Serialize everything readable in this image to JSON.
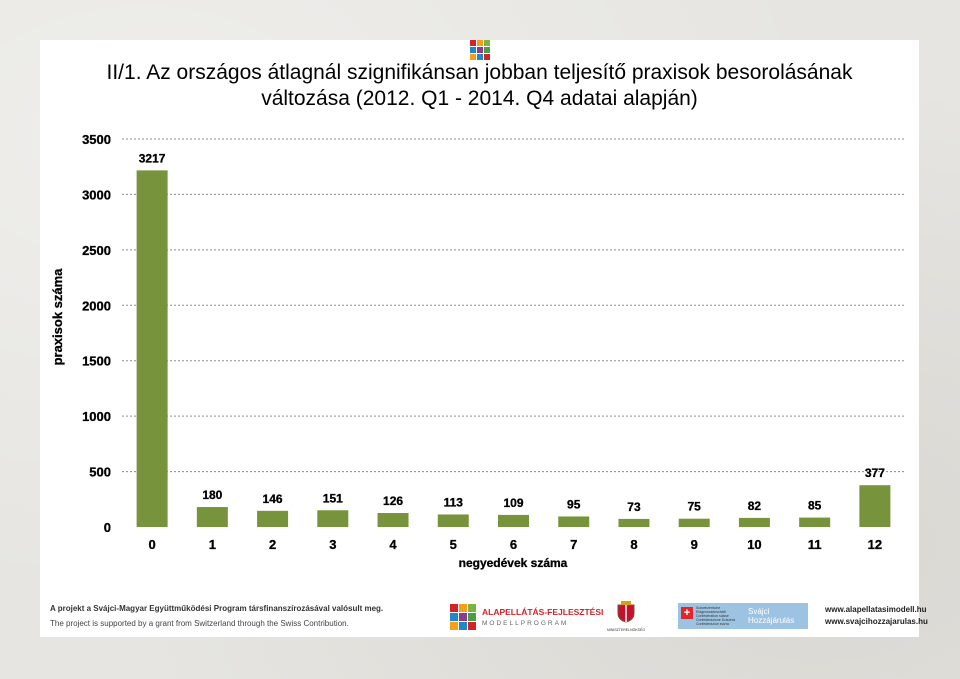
{
  "title_line1": "II/1. Az országos átlagnál szignifikánsan jobban teljesítő praxisok besorolásának",
  "title_line2": "változása (2012. Q1 - 2014. Q4  adatai alapján)",
  "chart_data": {
    "type": "bar",
    "categories": [
      "0",
      "1",
      "2",
      "3",
      "4",
      "5",
      "6",
      "7",
      "8",
      "9",
      "10",
      "11",
      "12"
    ],
    "values": [
      3217,
      180,
      146,
      151,
      126,
      113,
      109,
      95,
      73,
      75,
      82,
      85,
      377
    ],
    "xlabel": "negyedévek száma",
    "ylabel": "praxisok száma",
    "ylim": [
      0,
      3500
    ],
    "yticks": [
      0,
      500,
      1000,
      1500,
      2000,
      2500,
      3000,
      3500
    ],
    "grid": true,
    "bar_color": "#77933c",
    "data_labels": true
  },
  "footer": {
    "text_hu": "A projekt a Svájci-Magyar Együttműködési Program társfinanszírozásával valósult meg.",
    "text_en": "The project is supported by a grant from Switzerland through the Swiss Contribution.",
    "brand_line1": "ALAPELLÁTÁS-FEJLESZTÉSI",
    "brand_line2": "MODELLPROGRAM",
    "ministry": "MINISZTERELNÖKSÉG",
    "swiss_small": "Schweizerische Eidgenossenschaft Confédération suisse Confederazione Svizzera Confederaziun svizra",
    "swiss_brand_line1": "Svájci",
    "swiss_brand_line2": "Hozzájárulás",
    "url1": "www.alapellatasimodell.hu",
    "url2": "www.svajcihozzajarulas.hu"
  },
  "colors": {
    "logo": [
      "#d2232a",
      "#f6a01a",
      "#7cb342",
      "#1e88c8",
      "#8e3a8e",
      "#43a047"
    ]
  }
}
